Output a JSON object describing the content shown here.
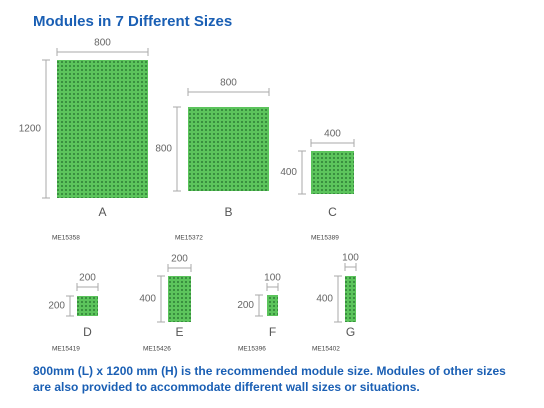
{
  "header": {
    "title": "Modules in 7 Different Sizes"
  },
  "modules": [
    {
      "letter": "A",
      "code": "ME15358",
      "width": 800,
      "height": 1200
    },
    {
      "letter": "B",
      "code": "ME15372",
      "width": 800,
      "height": 800
    },
    {
      "letter": "C",
      "code": "ME15389",
      "width": 400,
      "height": 400
    },
    {
      "letter": "D",
      "code": "ME15419",
      "width": 200,
      "height": 200
    },
    {
      "letter": "E",
      "code": "ME15426",
      "width": 200,
      "height": 400
    },
    {
      "letter": "F",
      "code": "ME15396",
      "width": 100,
      "height": 200
    },
    {
      "letter": "G",
      "code": "ME15402",
      "width": 100,
      "height": 400
    }
  ],
  "footer": {
    "lines": [
      "800mm (L) x 1200 mm (H) is the recommended module size.  Modules of other sizes",
      "are also provided to accommodate different wall sizes or situations."
    ]
  }
}
